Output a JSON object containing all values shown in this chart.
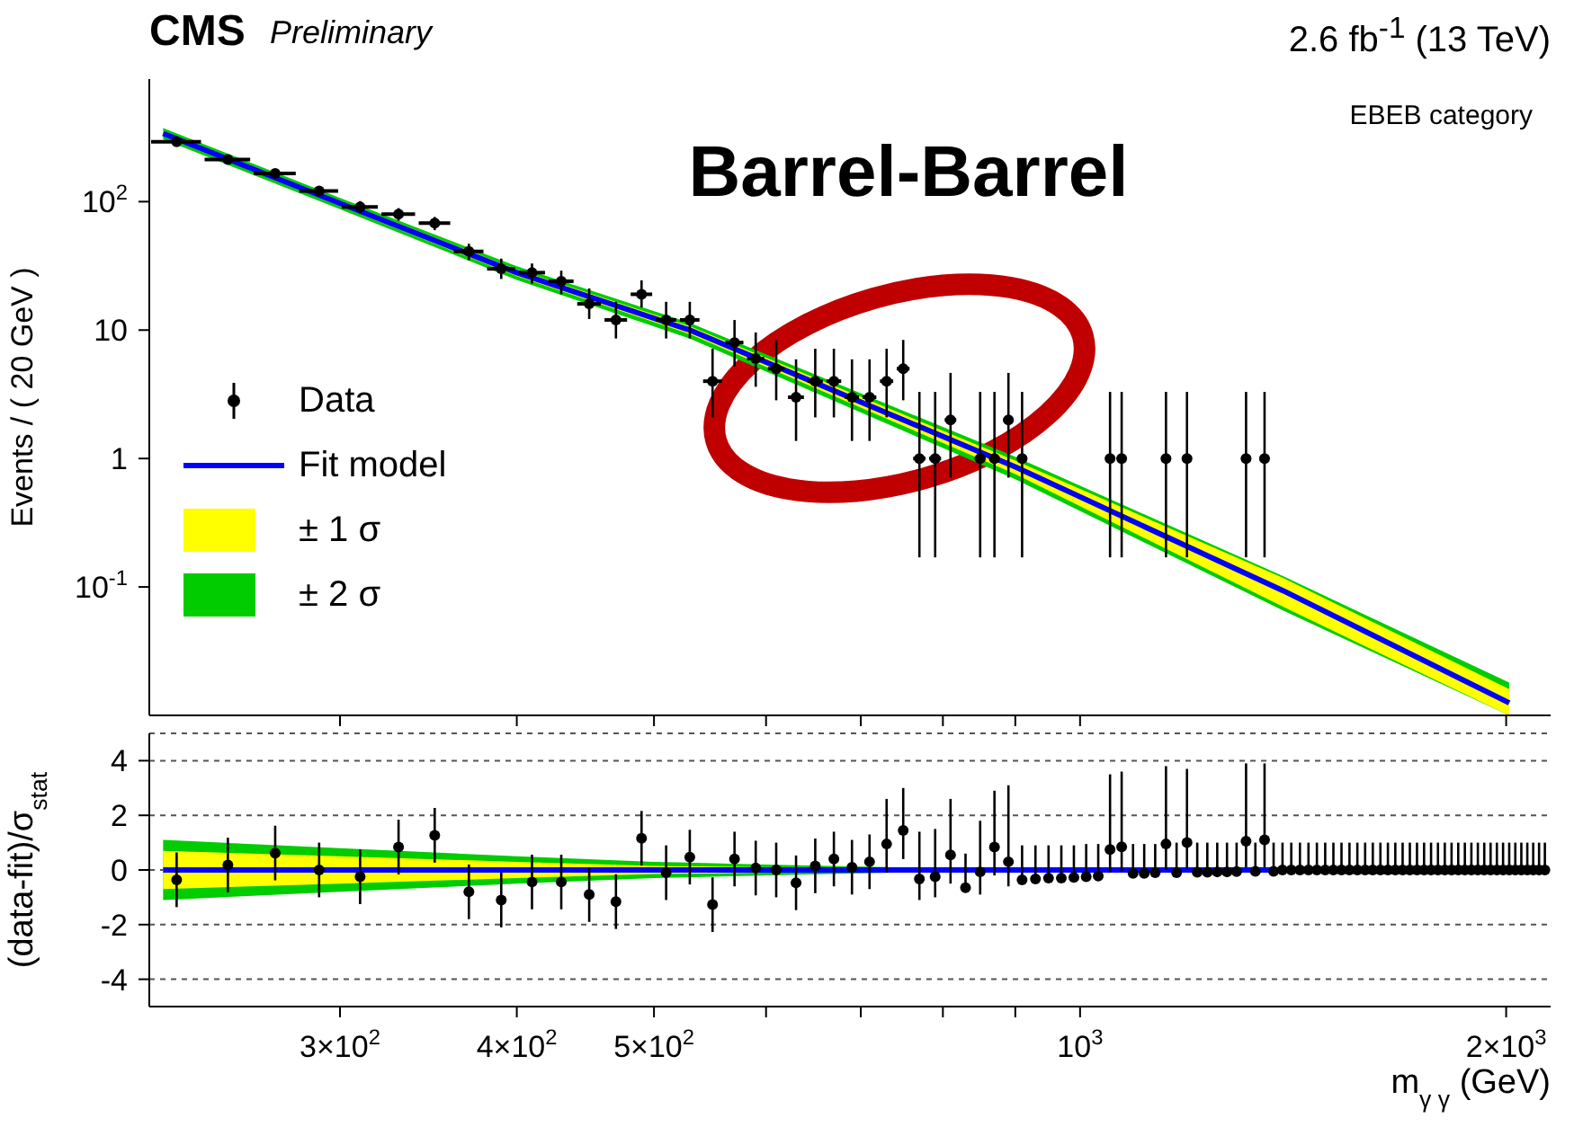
{
  "chart_data": [
    {
      "type": "scatter",
      "title": "CMS",
      "subtitle": "Preliminary",
      "ylabel": "Events / ( 20 GeV )",
      "annotations": [
        "2.6 fb$^{-1}$ (13 TeV)",
        "EBEB category",
        "Barrel-Barrel"
      ],
      "log": "xy",
      "legend": "left",
      "tick_labels": "y",
      "xlim": [
        220,
        2150
      ],
      "xticks": [
        {
          "value": 300,
          "label": null
        },
        {
          "value": 400,
          "label": null
        },
        {
          "value": 500,
          "label": null
        },
        {
          "value": 600,
          "label": null
        },
        {
          "value": 700,
          "label": null
        },
        {
          "value": 800,
          "label": null
        },
        {
          "value": 900,
          "label": null
        },
        {
          "value": 1000,
          "label": null
        },
        {
          "value": 2000,
          "label": null
        }
      ],
      "ylim": [
        0.01,
        900
      ],
      "yticks": [
        {
          "value": 0.1,
          "label": "10$^{-1}$"
        },
        1,
        10,
        {
          "value": 100,
          "label": "10$^{2}$"
        }
      ],
      "series": [
        {
          "name": "Data",
          "type": "scatter",
          "marker": "circle",
          "color": "#000000",
          "x": [
            230,
            250,
            270,
            290,
            310,
            330,
            350,
            370,
            390,
            410,
            430,
            450,
            470,
            490,
            510,
            530,
            550,
            570,
            590,
            610,
            630,
            650,
            670,
            690,
            710,
            730,
            750,
            770,
            790,
            810,
            850,
            870,
            890,
            910,
            1050,
            1070,
            1150,
            1190,
            1310,
            1350
          ],
          "values": [
            292,
            213,
            166,
            121,
            91,
            80,
            68,
            41,
            30,
            28,
            24,
            16,
            12,
            19,
            12,
            12,
            4,
            8,
            6,
            5,
            3,
            4,
            4,
            3,
            3,
            4,
            5,
            1,
            1,
            2,
            1,
            1,
            2,
            1,
            1,
            1,
            1,
            1,
            1,
            1
          ],
          "errors": [
            [
              275,
              309
            ],
            [
              198,
              228
            ],
            [
              153,
              179
            ],
            [
              110,
              132
            ],
            [
              81,
              101
            ],
            [
              71,
              89
            ],
            [
              60,
              76
            ],
            [
              35,
              47
            ],
            [
              25,
              36
            ],
            [
              23,
              33
            ],
            [
              19,
              29
            ],
            [
              12.2,
              21.1
            ],
            [
              8.6,
              16.6
            ],
            [
              15,
              24.4
            ],
            [
              8.6,
              16.6
            ],
            [
              8.6,
              16.6
            ],
            [
              2.09,
              7.16
            ],
            [
              5.23,
              11.98
            ],
            [
              3.62,
              9.58
            ],
            [
              2.84,
              8.38
            ],
            [
              1.37,
              5.92
            ],
            [
              2.09,
              7.16
            ],
            [
              2.09,
              7.16
            ],
            [
              1.37,
              5.92
            ],
            [
              1.37,
              5.92
            ],
            [
              2.09,
              7.16
            ],
            [
              2.84,
              8.38
            ],
            [
              0.17,
              3.3
            ],
            [
              0.17,
              3.3
            ],
            [
              0.71,
              4.64
            ],
            [
              0.17,
              3.3
            ],
            [
              0.17,
              3.3
            ],
            [
              0.71,
              4.64
            ],
            [
              0.17,
              3.3
            ],
            [
              0.17,
              3.3
            ],
            [
              0.17,
              3.3
            ],
            [
              0.17,
              3.3
            ],
            [
              0.17,
              3.3
            ],
            [
              0.17,
              3.3
            ],
            [
              0.17,
              3.3
            ]
          ],
          "xerrors": [
            10,
            10,
            10,
            10,
            10,
            10,
            10,
            10,
            10,
            10,
            10,
            10,
            10,
            10,
            10,
            10,
            10,
            10,
            10,
            10,
            10,
            10,
            10,
            10,
            10,
            10,
            10,
            10,
            10,
            10,
            10,
            10,
            10,
            10,
            10,
            10,
            10,
            10,
            10,
            10
          ]
        },
        {
          "name": "Fit model",
          "type": "line",
          "color": "#0000ff",
          "x": [
            225,
            300,
            400,
            530,
            900,
            1390,
            2010
          ],
          "values": [
            340,
            97,
            28,
            10,
            0.86,
            0.094,
            0.0125
          ]
        },
        {
          "name": "± 1 σ",
          "type": "area",
          "color": "#ffff00",
          "x": [
            225,
            300,
            400,
            530,
            900,
            1390,
            2010
          ],
          "values": [
            null,
            null,
            null,
            null,
            null,
            null,
            null
          ],
          "lower": [
            323,
            92.2,
            26.3,
            9.3,
            0.757,
            0.0705,
            0.01
          ],
          "upper": [
            357,
            102,
            29.7,
            10.7,
            0.963,
            0.118,
            0.016
          ]
        },
        {
          "name": "± 2 σ",
          "type": "area",
          "color": "#00cc00",
          "x": [
            225,
            300,
            400,
            530,
            900,
            1390,
            2010
          ],
          "values": [
            null,
            null,
            null,
            null,
            null,
            null,
            null
          ],
          "lower": [
            306,
            87.3,
            24.6,
            8.6,
            0.69,
            0.066,
            0.01
          ],
          "upper": [
            374,
            107,
            31.4,
            11.4,
            1.03,
            0.122,
            0.018
          ]
        }
      ]
    },
    {
      "type": "scatter",
      "xlabel": "m$_{γ γ}$ (GeV)",
      "ylabel": "(data-fit)/σ$_{stat}$",
      "log": "x",
      "grid": "y",
      "xlim": [
        220,
        2150
      ],
      "xticks": [
        {
          "value": 300,
          "label": "3×10$^{2}$"
        },
        {
          "value": 400,
          "label": "4×10$^{2}$"
        },
        {
          "value": 500,
          "label": "5×10$^{2}$"
        },
        {
          "value": 600,
          "label": null
        },
        {
          "value": 700,
          "label": null
        },
        {
          "value": 800,
          "label": null
        },
        {
          "value": 900,
          "label": null
        },
        {
          "value": 1000,
          "label": "10$^{3}$"
        },
        {
          "value": 2000,
          "label": "2×10$^{3}$"
        }
      ],
      "ylim": [
        -5,
        5
      ],
      "yticks": [
        -4,
        -2,
        0,
        2,
        4
      ],
      "series": [
        {
          "type": "scatter",
          "marker": "circle",
          "color": "#000000",
          "x": [
            230,
            250,
            270,
            290,
            310,
            330,
            350,
            370,
            390,
            410,
            430,
            450,
            470,
            490,
            510,
            530,
            550,
            570,
            590,
            610,
            630,
            650,
            670,
            690,
            710,
            730,
            750,
            770,
            790,
            810,
            830,
            850,
            870,
            890,
            910,
            930,
            950,
            970,
            990,
            1010,
            1030,
            1050,
            1070,
            1090,
            1110,
            1130,
            1150,
            1170,
            1190,
            1210,
            1230,
            1250,
            1270,
            1290,
            1310,
            1330,
            1350,
            1370,
            1390,
            1410,
            1430,
            1450,
            1470,
            1490,
            1510,
            1530,
            1550,
            1570,
            1590,
            1610,
            1630,
            1650,
            1670,
            1690,
            1710,
            1730,
            1750,
            1770,
            1790,
            1810,
            1830,
            1850,
            1870,
            1890,
            1910,
            1930,
            1950,
            1970,
            1990,
            2010,
            2030,
            2050,
            2070,
            2090,
            2110,
            2130
          ],
          "values": [
            -0.36,
            0.18,
            0.62,
            0,
            -0.25,
            0.84,
            1.27,
            -0.8,
            -1.1,
            -0.44,
            -0.44,
            -0.9,
            -1.16,
            1.16,
            -0.1,
            0.47,
            -1.27,
            0.4,
            0.07,
            0,
            -0.47,
            0.15,
            0.4,
            0.1,
            0.3,
            0.95,
            1.45,
            -0.33,
            -0.25,
            0.55,
            -0.65,
            -0.07,
            0.84,
            0.3,
            -0.36,
            -0.33,
            -0.3,
            -0.3,
            -0.27,
            -0.25,
            -0.22,
            0.75,
            0.85,
            -0.12,
            -0.12,
            -0.1,
            0.95,
            -0.1,
            1.0,
            -0.08,
            -0.08,
            -0.07,
            -0.07,
            -0.06,
            1.05,
            -0.05,
            1.1,
            -0.05,
            0,
            0,
            0,
            0,
            0,
            0,
            0,
            0,
            0,
            0,
            0,
            0,
            0,
            0,
            0,
            0,
            0,
            0,
            0,
            0,
            0,
            0,
            0,
            0,
            0,
            0,
            0,
            0,
            0,
            0,
            0,
            0,
            0,
            0,
            0,
            0,
            0,
            0
          ],
          "errors": [
            1,
            1,
            1,
            1,
            1,
            1,
            1,
            1,
            1,
            1,
            1,
            1,
            1,
            1,
            1,
            1,
            1,
            1,
            1,
            1,
            1,
            1,
            1,
            1,
            1,
            [
              -0.1,
              2.6
            ],
            [
              0.4,
              3
            ],
            [
              -1.1,
              1.4
            ],
            [
              -1.0,
              1.5
            ],
            [
              -0.5,
              2.6
            ],
            [
              -0.65,
              0.6
            ],
            [
              -0.9,
              1.8
            ],
            [
              -0.2,
              2.9
            ],
            [
              -0.6,
              3.1
            ],
            [
              -0.36,
              0.9
            ],
            [
              -0.33,
              0.9
            ],
            [
              -0.3,
              0.9
            ],
            [
              -0.3,
              0.9
            ],
            [
              -0.27,
              0.9
            ],
            [
              -0.25,
              0.95
            ],
            [
              -0.22,
              0.95
            ],
            [
              -0.1,
              3.5
            ],
            [
              -0.05,
              3.6
            ],
            [
              -0.12,
              0.95
            ],
            [
              -0.12,
              0.95
            ],
            [
              -0.1,
              0.95
            ],
            [
              0,
              3.8
            ],
            [
              -0.1,
              1
            ],
            [
              0.05,
              3.7
            ],
            [
              -0.08,
              1
            ],
            [
              -0.08,
              1
            ],
            [
              -0.07,
              1
            ],
            [
              -0.07,
              1
            ],
            [
              -0.06,
              1
            ],
            [
              0.1,
              3.9
            ],
            [
              -0.05,
              1
            ],
            [
              0.1,
              3.9
            ],
            [
              -0.05,
              1
            ],
            [
              0,
              1
            ],
            [
              0,
              1
            ],
            [
              0,
              1
            ],
            [
              0,
              1
            ],
            [
              0,
              1
            ],
            [
              0,
              1
            ],
            [
              0,
              1
            ],
            [
              0,
              1
            ],
            [
              0,
              1
            ],
            [
              0,
              1
            ],
            [
              0,
              1
            ],
            [
              0,
              1
            ],
            [
              0,
              1
            ],
            [
              0,
              1
            ],
            [
              0,
              1
            ],
            [
              0,
              1
            ],
            [
              0,
              1
            ],
            [
              0,
              1
            ],
            [
              0,
              1
            ],
            [
              0,
              1
            ],
            [
              0,
              1
            ],
            [
              0,
              1
            ],
            [
              0,
              1
            ],
            [
              0,
              1
            ],
            [
              0,
              1
            ],
            [
              0,
              1
            ],
            [
              0,
              1
            ],
            [
              0,
              1
            ],
            [
              0,
              1
            ],
            [
              0,
              1
            ],
            [
              0,
              1
            ],
            [
              0,
              1
            ],
            [
              0,
              1
            ],
            [
              0,
              1
            ],
            [
              0,
              1
            ],
            [
              0,
              1
            ],
            [
              0,
              1
            ],
            [
              0,
              1
            ]
          ]
        },
        {
          "type": "line",
          "color": "#0000ff",
          "x": [
            225,
            2140
          ],
          "values": [
            0,
            0
          ]
        },
        {
          "type": "area",
          "color": "#ffff00",
          "x": [
            225,
            300,
            400,
            500,
            600,
            700,
            800,
            900
          ],
          "values": [
            null,
            null,
            null,
            null,
            null,
            null,
            null,
            null
          ],
          "lower": [
            -0.7,
            -0.5,
            -0.3,
            -0.15,
            -0.1,
            -0.06,
            -0.03,
            -0.01
          ],
          "upper": [
            0.7,
            0.5,
            0.3,
            0.15,
            0.1,
            0.06,
            0.03,
            0.01
          ]
        },
        {
          "type": "area",
          "color": "#00cc00",
          "x": [
            225,
            300,
            400,
            500,
            600,
            700,
            800,
            900
          ],
          "values": [
            null,
            null,
            null,
            null,
            null,
            null,
            null,
            null
          ],
          "lower": [
            -1.1,
            -0.8,
            -0.5,
            -0.3,
            -0.2,
            -0.12,
            -0.06,
            -0.02
          ],
          "upper": [
            1.1,
            0.8,
            0.5,
            0.3,
            0.2,
            0.12,
            0.06,
            0.02
          ]
        }
      ]
    }
  ]
}
